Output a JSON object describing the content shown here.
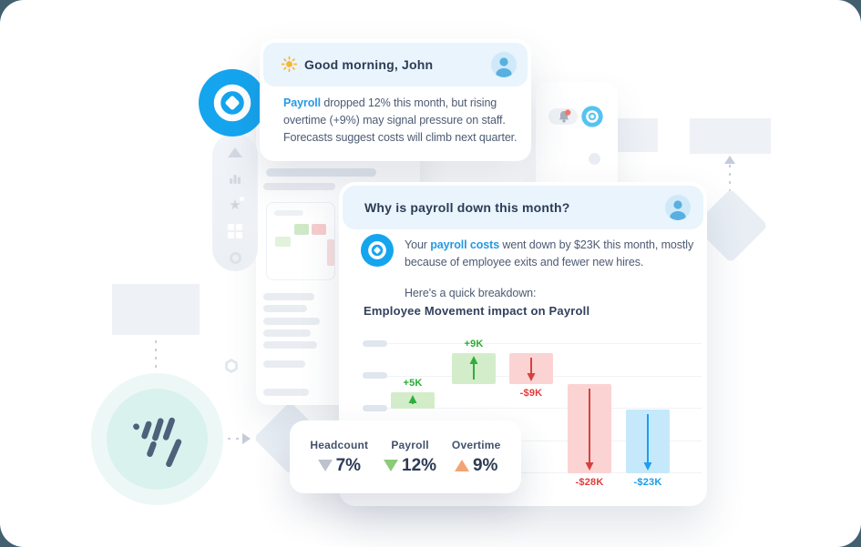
{
  "greeting_card": {
    "title": "Good morning, John",
    "body": {
      "highlight": "Payroll",
      "line1_rest": " dropped 12% this month, but rising",
      "line2": "overtime (+9%) may signal pressure on staff.",
      "line3": "Forecasts suggest costs will climb next quarter."
    }
  },
  "chat_card": {
    "question": "Why is payroll down this month?",
    "answer": {
      "prefix": "Your ",
      "highlight": "payroll costs",
      "line1_rest": " went down by $23K this month, mostly",
      "line2": "because of employee exits and fewer new hires."
    },
    "breakdown_label": "Here's a quick breakdown:"
  },
  "chart_data": {
    "type": "bar",
    "subtype": "waterfall",
    "title": "Employee Movement impact on Payroll",
    "xlabel": "",
    "ylabel": "",
    "axis_tick_labels": "hidden-skeleton-pills",
    "grid": true,
    "gridline_count": 5,
    "bars": [
      {
        "label": "+5K",
        "value": 5,
        "direction": "up",
        "color_key": "green"
      },
      {
        "label": "+9K",
        "value": 9,
        "direction": "up",
        "color_key": "green"
      },
      {
        "label": "-$9K",
        "value": -9,
        "direction": "down",
        "color_key": "red"
      },
      {
        "label": "-$28K",
        "value": -28,
        "direction": "down",
        "color_key": "red"
      },
      {
        "label": "-$23K",
        "value": -23,
        "direction": "down",
        "color_key": "blue"
      }
    ],
    "palette": {
      "green": {
        "fill": "#d3edca",
        "arrow": "#2fae3c",
        "text": "#2aac33"
      },
      "red": {
        "fill": "#fbd3d3",
        "arrow": "#d84040",
        "text": "#e13b3b"
      },
      "blue": {
        "fill": "#c5e9fa",
        "arrow": "#1b9ff0",
        "text": "#189ceb"
      }
    }
  },
  "stats_card": {
    "stats": [
      {
        "label": "Headcount",
        "value": "7%",
        "direction": "down",
        "color": "#bcc3cd"
      },
      {
        "label": "Payroll",
        "value": "12%",
        "direction": "down",
        "color": "#8ccb78"
      },
      {
        "label": "Overtime",
        "value": "9%",
        "direction": "up",
        "color": "#f2a474"
      }
    ]
  },
  "icons": {
    "sun-icon": "sun",
    "user-avatar-icon": "person silhouette",
    "target-logo-icon": "concentric circles with diamond",
    "spark-logo-icon": "slanted dashes monogram",
    "bell-icon": "notification bell with red badge",
    "sidebar-icons": [
      "play-triangle",
      "bar-chart",
      "star",
      "dashboard-grid",
      "circle",
      "hexagon"
    ]
  },
  "colors": {
    "accent_blue": "#2799e2",
    "logo_blue": "#15a5ef",
    "header_tint": "#e9f4fc",
    "page_frame": "#42606e"
  }
}
